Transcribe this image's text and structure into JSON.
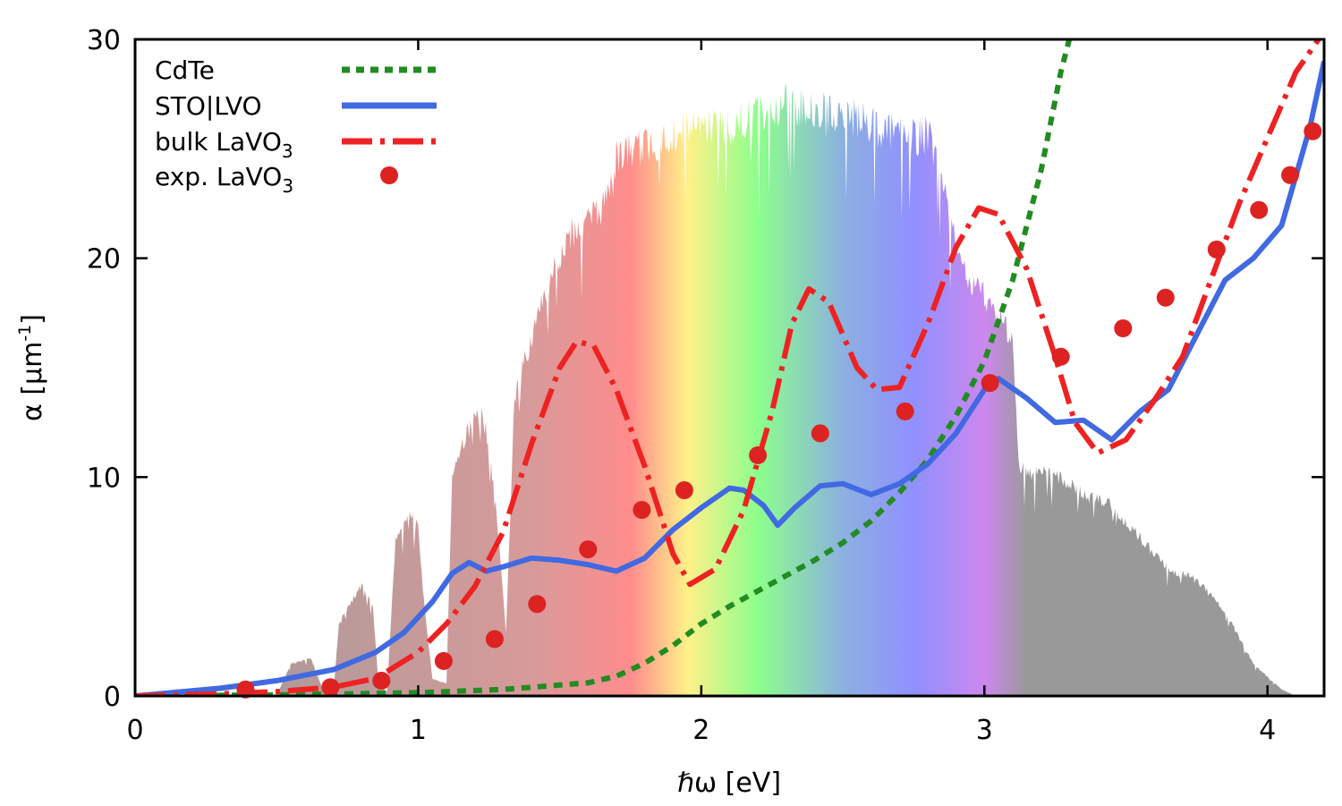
{
  "chart_data": {
    "type": "line",
    "xlabel": "ℏω  [eV]",
    "ylabel": {
      "main": "α  [μm",
      "sup": "-1",
      "close": "]"
    },
    "xlim": [
      0,
      4.2
    ],
    "ylim": [
      0,
      30
    ],
    "xticks": [
      0,
      1,
      2,
      3,
      4
    ],
    "yticks": [
      0,
      10,
      20,
      30
    ],
    "legend_position": "top-left",
    "background": {
      "name": "solar spectrum",
      "fill_colors": {
        "infrared": "#999999",
        "ultraviolet": "#999999",
        "visible_stops": [
          {
            "ev": 1.4,
            "color": "#d89a9a"
          },
          {
            "ev": 1.75,
            "color": "#ff8c8c"
          },
          {
            "ev": 1.95,
            "color": "#fff08a"
          },
          {
            "ev": 2.2,
            "color": "#8cff8c"
          },
          {
            "ev": 2.5,
            "color": "#8cb0e0"
          },
          {
            "ev": 2.75,
            "color": "#9090ff"
          },
          {
            "ev": 3.0,
            "color": "#cc88ee"
          },
          {
            "ev": 3.15,
            "color": "#999999"
          }
        ]
      },
      "envelope": [
        [
          0.0,
          0.0
        ],
        [
          0.5,
          0.0
        ],
        [
          0.55,
          1.5
        ],
        [
          0.62,
          1.8
        ],
        [
          0.66,
          0.4
        ],
        [
          0.7,
          0.0
        ],
        [
          0.72,
          3.5
        ],
        [
          0.8,
          5.2
        ],
        [
          0.84,
          4.2
        ],
        [
          0.86,
          0.5
        ],
        [
          0.89,
          0.2
        ],
        [
          0.92,
          7.5
        ],
        [
          0.97,
          8.7
        ],
        [
          1.0,
          8.0
        ],
        [
          1.02,
          4.5
        ],
        [
          1.05,
          0.8
        ],
        [
          1.1,
          0.6
        ],
        [
          1.12,
          10.5
        ],
        [
          1.18,
          12.8
        ],
        [
          1.22,
          13.5
        ],
        [
          1.25,
          12.0
        ],
        [
          1.28,
          8.0
        ],
        [
          1.31,
          3.0
        ],
        [
          1.34,
          14.0
        ],
        [
          1.4,
          17.0
        ],
        [
          1.45,
          19.0
        ],
        [
          1.5,
          21.0
        ],
        [
          1.55,
          22.0
        ],
        [
          1.6,
          22.5
        ],
        [
          1.65,
          23.0
        ],
        [
          1.7,
          25.5
        ],
        [
          1.8,
          26.0
        ],
        [
          1.9,
          26.5
        ],
        [
          2.0,
          27.0
        ],
        [
          2.1,
          27.0
        ],
        [
          2.2,
          27.5
        ],
        [
          2.3,
          28.0
        ],
        [
          2.4,
          27.8
        ],
        [
          2.5,
          27.5
        ],
        [
          2.6,
          27.0
        ],
        [
          2.7,
          26.5
        ],
        [
          2.8,
          26.5
        ],
        [
          2.85,
          25.0
        ],
        [
          2.9,
          21.0
        ],
        [
          2.95,
          19.5
        ],
        [
          3.0,
          19.0
        ],
        [
          3.05,
          18.0
        ],
        [
          3.1,
          17.0
        ],
        [
          3.12,
          11.0
        ],
        [
          3.15,
          10.5
        ],
        [
          3.25,
          10.5
        ],
        [
          3.35,
          9.5
        ],
        [
          3.45,
          9.0
        ],
        [
          3.55,
          7.5
        ],
        [
          3.65,
          6.0
        ],
        [
          3.75,
          5.5
        ],
        [
          3.85,
          4.0
        ],
        [
          3.95,
          1.5
        ],
        [
          4.05,
          0.3
        ],
        [
          4.1,
          0.0
        ],
        [
          4.2,
          0.0
        ]
      ]
    },
    "series": [
      {
        "name": "CdTe",
        "style": "dotted",
        "color": "#228b22",
        "points": [
          [
            0.0,
            0.0
          ],
          [
            0.5,
            0.05
          ],
          [
            1.0,
            0.15
          ],
          [
            1.3,
            0.3
          ],
          [
            1.5,
            0.5
          ],
          [
            1.6,
            0.6
          ],
          [
            1.7,
            0.9
          ],
          [
            1.8,
            1.5
          ],
          [
            1.9,
            2.3
          ],
          [
            2.0,
            3.3
          ],
          [
            2.1,
            4.1
          ],
          [
            2.2,
            4.8
          ],
          [
            2.3,
            5.5
          ],
          [
            2.4,
            6.2
          ],
          [
            2.5,
            7.0
          ],
          [
            2.6,
            8.0
          ],
          [
            2.7,
            9.3
          ],
          [
            2.8,
            10.8
          ],
          [
            2.9,
            12.8
          ],
          [
            3.0,
            15.3
          ],
          [
            3.1,
            19.0
          ],
          [
            3.2,
            24.0
          ],
          [
            3.27,
            28.5
          ],
          [
            3.3,
            30.0
          ]
        ]
      },
      {
        "name": "STO|LVO",
        "style": "solid",
        "color": "#4169e1",
        "points": [
          [
            0.0,
            0.0
          ],
          [
            0.3,
            0.35
          ],
          [
            0.5,
            0.7
          ],
          [
            0.7,
            1.2
          ],
          [
            0.85,
            2.0
          ],
          [
            0.95,
            2.9
          ],
          [
            1.05,
            4.3
          ],
          [
            1.12,
            5.6
          ],
          [
            1.18,
            6.1
          ],
          [
            1.24,
            5.7
          ],
          [
            1.3,
            5.9
          ],
          [
            1.4,
            6.3
          ],
          [
            1.5,
            6.2
          ],
          [
            1.6,
            6.0
          ],
          [
            1.7,
            5.7
          ],
          [
            1.8,
            6.3
          ],
          [
            1.9,
            7.6
          ],
          [
            2.0,
            8.6
          ],
          [
            2.1,
            9.5
          ],
          [
            2.15,
            9.4
          ],
          [
            2.22,
            8.7
          ],
          [
            2.27,
            7.8
          ],
          [
            2.33,
            8.6
          ],
          [
            2.42,
            9.6
          ],
          [
            2.5,
            9.7
          ],
          [
            2.6,
            9.2
          ],
          [
            2.7,
            9.7
          ],
          [
            2.8,
            10.6
          ],
          [
            2.9,
            12.0
          ],
          [
            3.0,
            14.0
          ],
          [
            3.05,
            14.5
          ],
          [
            3.15,
            13.6
          ],
          [
            3.25,
            12.5
          ],
          [
            3.35,
            12.6
          ],
          [
            3.45,
            11.7
          ],
          [
            3.55,
            13.0
          ],
          [
            3.65,
            14.0
          ],
          [
            3.75,
            16.5
          ],
          [
            3.85,
            19.0
          ],
          [
            3.95,
            20.0
          ],
          [
            4.05,
            21.5
          ],
          [
            4.15,
            26.0
          ],
          [
            4.2,
            29.0
          ]
        ]
      },
      {
        "name": "bulk LaVO",
        "name_sub": "3",
        "style": "dash-dot",
        "color": "#ee2222",
        "points": [
          [
            0.0,
            0.0
          ],
          [
            0.3,
            0.1
          ],
          [
            0.5,
            0.2
          ],
          [
            0.7,
            0.4
          ],
          [
            0.85,
            0.8
          ],
          [
            1.0,
            2.0
          ],
          [
            1.1,
            3.3
          ],
          [
            1.2,
            5.0
          ],
          [
            1.3,
            7.5
          ],
          [
            1.4,
            11.5
          ],
          [
            1.5,
            15.0
          ],
          [
            1.56,
            16.2
          ],
          [
            1.62,
            16.0
          ],
          [
            1.7,
            14.0
          ],
          [
            1.8,
            10.5
          ],
          [
            1.9,
            6.5
          ],
          [
            1.96,
            5.1
          ],
          [
            2.05,
            5.8
          ],
          [
            2.15,
            8.5
          ],
          [
            2.25,
            13.0
          ],
          [
            2.32,
            17.0
          ],
          [
            2.38,
            18.6
          ],
          [
            2.45,
            18.0
          ],
          [
            2.55,
            15.0
          ],
          [
            2.62,
            14.0
          ],
          [
            2.7,
            14.1
          ],
          [
            2.8,
            17.0
          ],
          [
            2.9,
            20.5
          ],
          [
            2.98,
            22.3
          ],
          [
            3.05,
            22.0
          ],
          [
            3.15,
            19.5
          ],
          [
            3.25,
            15.5
          ],
          [
            3.32,
            12.5
          ],
          [
            3.4,
            11.1
          ],
          [
            3.5,
            11.7
          ],
          [
            3.6,
            13.5
          ],
          [
            3.7,
            15.5
          ],
          [
            3.8,
            19.0
          ],
          [
            3.9,
            22.5
          ],
          [
            4.0,
            25.5
          ],
          [
            4.1,
            28.5
          ],
          [
            4.18,
            30.0
          ]
        ]
      }
    ],
    "scatter": {
      "name": "exp. LaVO",
      "name_sub": "3",
      "color": "#dd2222",
      "points": [
        [
          0.39,
          0.3
        ],
        [
          0.69,
          0.4
        ],
        [
          0.87,
          0.7
        ],
        [
          1.09,
          1.6
        ],
        [
          1.27,
          2.6
        ],
        [
          1.42,
          4.2
        ],
        [
          1.6,
          6.7
        ],
        [
          1.79,
          8.5
        ],
        [
          1.94,
          9.4
        ],
        [
          2.2,
          11.0
        ],
        [
          2.42,
          12.0
        ],
        [
          2.72,
          13.0
        ],
        [
          3.02,
          14.3
        ],
        [
          3.27,
          15.5
        ],
        [
          3.49,
          16.8
        ],
        [
          3.64,
          18.2
        ],
        [
          3.82,
          20.4
        ],
        [
          3.97,
          22.2
        ],
        [
          4.08,
          23.8
        ],
        [
          4.16,
          25.8
        ]
      ]
    }
  }
}
